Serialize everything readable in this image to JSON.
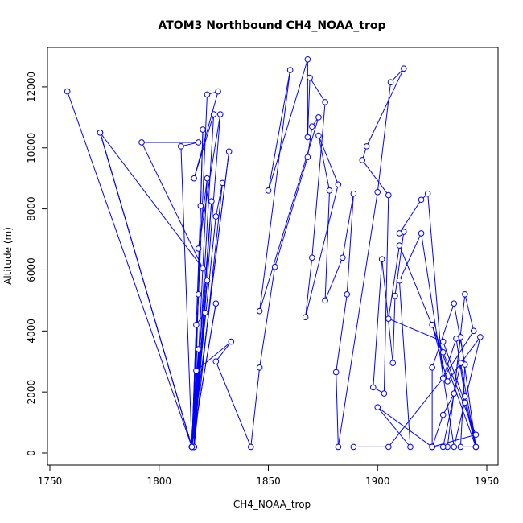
{
  "chart_data": {
    "type": "line",
    "title": "ATOM3 Northbound CH4_NOAA_trop",
    "xlabel": "CH4_NOAA_trop",
    "ylabel": "Altitude (m)",
    "xlim": [
      1750,
      1950
    ],
    "ylim": [
      0,
      13000
    ],
    "xticks": [
      1750,
      1800,
      1850,
      1900,
      1950
    ],
    "yticks": [
      0,
      2000,
      4000,
      6000,
      8000,
      10000,
      12000
    ],
    "grid": false,
    "legend": "none",
    "series_color": "#0000ff",
    "marker": "open-circle",
    "series": [
      {
        "x": [
          1758,
          1815,
          1773,
          1815,
          1773,
          1820,
          1792,
          1818,
          1810,
          1810,
          1815,
          1815,
          1822,
          1827,
          1816,
          1825,
          1816,
          1820,
          1819,
          1815,
          1824,
          1816,
          1828,
          1818,
          1822,
          1816,
          1829,
          1826,
          1815,
          1818,
          1815,
          1826,
          1815,
          1822,
          1815,
          1832,
          1815,
          1817,
          1821,
          1816,
          1818,
          1815,
          1817,
          1833,
          1826,
          1842,
          1846,
          1853,
          1868,
          1870,
          1873,
          1846,
          1860,
          1850,
          1868,
          1868,
          1869,
          1876,
          1870,
          1867,
          1882,
          1873,
          1878,
          1876,
          1884,
          1889,
          1886,
          1881,
          1882,
          1900,
          1906,
          1912,
          1895,
          1893,
          1905,
          1903,
          1898,
          1902,
          1907,
          1908,
          1912,
          1910,
          1920,
          1923,
          1930,
          1944,
          1940,
          1935,
          1930,
          1925,
          1932,
          1938,
          1945,
          1938,
          1940,
          1935,
          1925,
          1925,
          1945,
          1930,
          1910,
          1905,
          1930,
          1940,
          1945,
          1925,
          1932,
          1947,
          1935,
          1920,
          1910,
          1915,
          1900,
          1925,
          1930,
          1938,
          1945,
          1940,
          1936,
          1930,
          1905,
          1889
        ],
        "y": [
          11850,
          200,
          10500,
          200,
          10500,
          6050,
          10180,
          10180,
          10050,
          10050,
          200,
          200,
          11750,
          11850,
          9000,
          11100,
          200,
          10600,
          8100,
          200,
          8250,
          200,
          11100,
          6700,
          9000,
          200,
          8850,
          7750,
          200,
          5200,
          200,
          4900,
          200,
          5650,
          200,
          9880,
          200,
          4200,
          4600,
          200,
          3400,
          200,
          2700,
          3650,
          3000,
          200,
          2800,
          6100,
          9700,
          10700,
          11000,
          4650,
          12550,
          8600,
          12900,
          10350,
          12300,
          11500,
          6400,
          4450,
          8800,
          10400,
          8600,
          5000,
          6400,
          8500,
          5200,
          2650,
          200,
          8550,
          12150,
          12600,
          10050,
          9600,
          8450,
          1950,
          2150,
          6350,
          2950,
          5150,
          7250,
          7200,
          8300,
          8500,
          2450,
          4000,
          5200,
          1950,
          1250,
          200,
          200,
          3800,
          200,
          200,
          2900,
          4900,
          2800,
          200,
          600,
          3300,
          6800,
          4400,
          3650,
          1650,
          200,
          4200,
          2350,
          3800,
          200,
          7200,
          5650,
          200,
          1500,
          200,
          200,
          2950,
          200,
          1850,
          3750,
          2450,
          200,
          200
        ]
      }
    ]
  }
}
